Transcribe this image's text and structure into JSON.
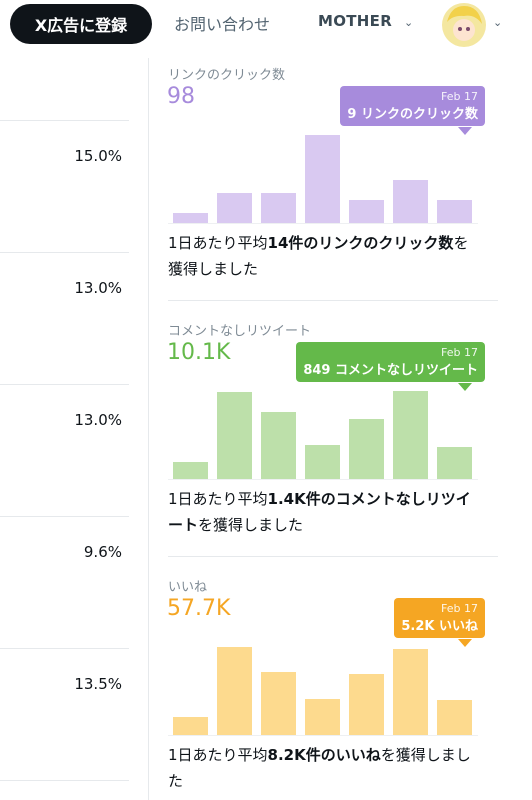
{
  "header": {
    "button": "X広告に登録",
    "contact": "お問い合わせ",
    "account": "MOTHER"
  },
  "left_column": {
    "values": [
      "15.0%",
      "13.0%",
      "13.0%",
      "9.6%",
      "13.5%"
    ]
  },
  "cards": [
    {
      "label": "リンクのクリック数",
      "total": "98",
      "color": "#a78bdc",
      "bar_color": "#d9c9f1",
      "tooltip": {
        "date": "Feb 17",
        "text": "9 リンクのクリック数"
      },
      "values": [
        4,
        12,
        12,
        35,
        9,
        17,
        9
      ],
      "summary": {
        "prefix": "1日あたり平均",
        "bold": "14件のリンクのクリック数",
        "suffix": "を獲得しました"
      }
    },
    {
      "label": "コメントなしリツイート",
      "total": "10.1K",
      "color": "#64b94a",
      "bar_color": "#bde0aa",
      "tooltip": {
        "date": "Feb 17",
        "text": "849 コメントなしリツイート"
      },
      "values": [
        450,
        2280,
        1750,
        890,
        1570,
        2300,
        849
      ],
      "summary": {
        "prefix": "1日あたり平均",
        "bold": "1.4K件のコメントなしリツイート",
        "suffix": "を獲得しました"
      }
    },
    {
      "label": "いいね",
      "total": "57.7K",
      "color": "#f5a623",
      "bar_color": "#fdda8e",
      "tooltip": {
        "date": "Feb 17",
        "text": "5.2K いいね"
      },
      "values": [
        2700,
        13100,
        9400,
        5400,
        9100,
        12800,
        5200
      ],
      "summary": {
        "prefix": "1日あたり平均",
        "bold": "8.2K件のいいね",
        "suffix": "を獲得しました"
      }
    }
  ]
}
